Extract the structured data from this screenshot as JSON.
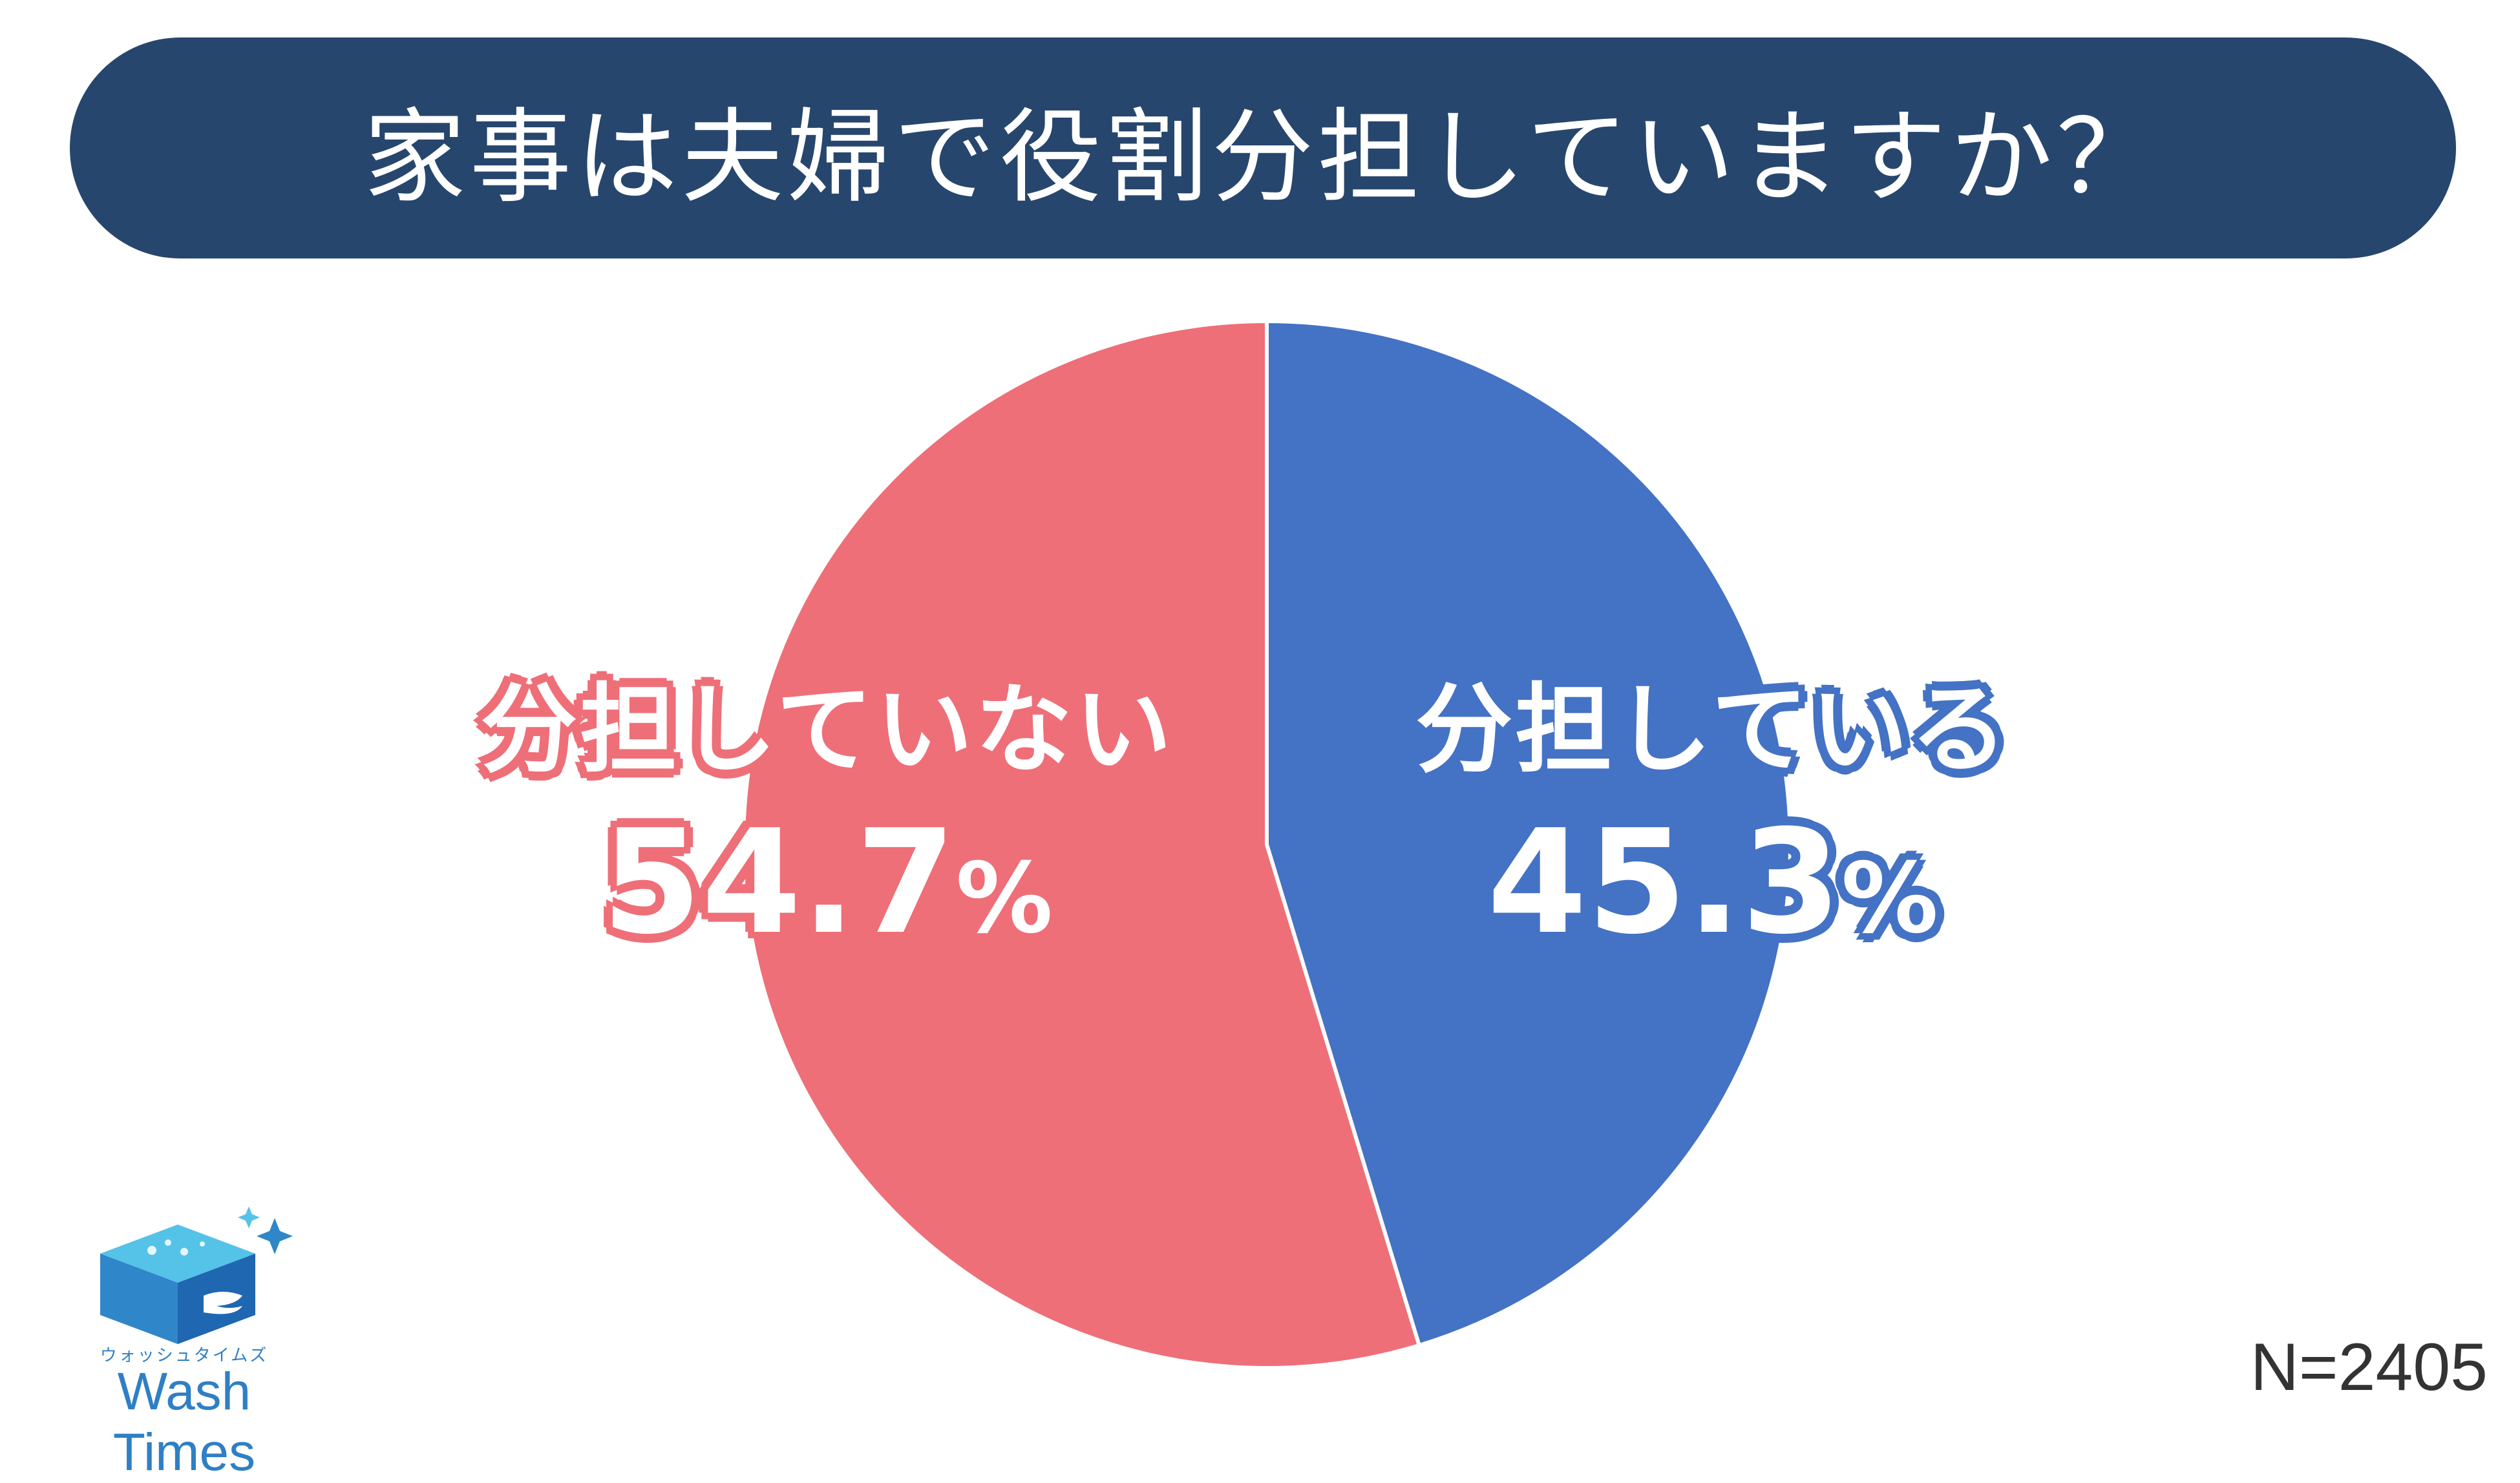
{
  "chart_data": {
    "type": "pie",
    "title": "家事は夫婦で役割分担していますか？",
    "categories": [
      "分担している",
      "分担していない"
    ],
    "values": [
      45.3,
      54.7
    ],
    "value_labels": [
      "45.3",
      "54.7"
    ],
    "unit": "%",
    "colors": [
      "#4472c4",
      "#ee6f78"
    ],
    "start_angle": "12 o'clock",
    "direction": "clockwise",
    "sample_size": "N=2405",
    "legend": "none"
  },
  "logo": {
    "kana": "ウォッシュタイムズ",
    "name": "Wash Times",
    "icon": "washing-box-icon"
  }
}
